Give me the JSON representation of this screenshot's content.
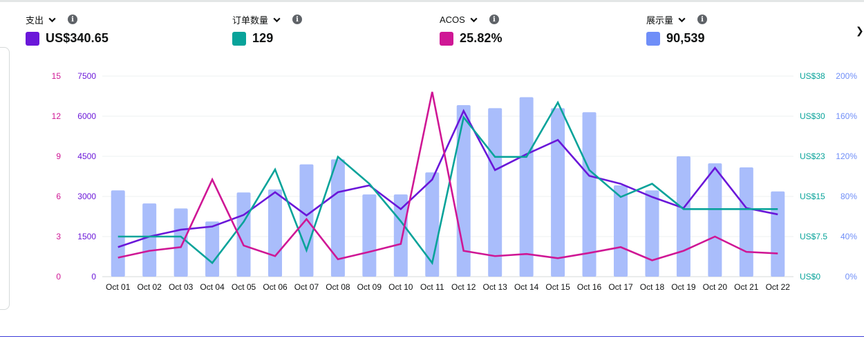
{
  "metrics": [
    {
      "name": "支出",
      "value": "US$340.65",
      "color": "#6a17d9"
    },
    {
      "name": "订单数量",
      "value": "129",
      "color": "#08a39a"
    },
    {
      "name": "ACOS",
      "value": "25.82%",
      "color": "#cf1795"
    },
    {
      "name": "展示量",
      "value": "90,539",
      "color": "#6f8ef8"
    }
  ],
  "icons": {
    "dropdown": "chevron-down-icon",
    "info": "info-icon"
  },
  "chart_data": {
    "type": "bar+line",
    "categories": [
      "Oct 01",
      "Oct 02",
      "Oct 03",
      "Oct 04",
      "Oct 05",
      "Oct 06",
      "Oct 07",
      "Oct 08",
      "Oct 09",
      "Oct 10",
      "Oct 11",
      "Oct 12",
      "Oct 13",
      "Oct 14",
      "Oct 15",
      "Oct 16",
      "Oct 17",
      "Oct 18",
      "Oct 19",
      "Oct 20",
      "Oct 21",
      "Oct 22"
    ],
    "axes": {
      "left_outer": {
        "ticks": [
          "0",
          "3",
          "6",
          "9",
          "12",
          "15"
        ],
        "min": 0,
        "max": 15,
        "color": "#cf1795"
      },
      "left_inner": {
        "ticks": [
          "0",
          "1500",
          "3000",
          "4500",
          "6000",
          "7500"
        ],
        "min": 0,
        "max": 7500,
        "color": "#6a17d9"
      },
      "right_inner": {
        "ticks": [
          "US$0",
          "US$7.5",
          "US$15",
          "US$23",
          "US$30",
          "US$38"
        ],
        "min": 0,
        "max": 38,
        "color": "#08a39a"
      },
      "right_outer": {
        "ticks": [
          "0%",
          "40%",
          "80%",
          "120%",
          "160%",
          "200%"
        ],
        "min": 0,
        "max": 200,
        "color": "#6f8ef8"
      }
    },
    "grid": true,
    "series": [
      {
        "name": "展示量",
        "type": "bar",
        "axis": "right_outer",
        "color": "#a9bdfb",
        "values": [
          86,
          73,
          68,
          55,
          84,
          87,
          112,
          117,
          82,
          82,
          104,
          171,
          168,
          179,
          168,
          164,
          91,
          86,
          120,
          113,
          109,
          85
        ]
      },
      {
        "name": "支出",
        "type": "line",
        "axis": "right_inner",
        "color": "#6a17d9",
        "values": [
          5.6,
          7.6,
          8.9,
          9.5,
          11.7,
          16.0,
          11.6,
          16.0,
          17.3,
          12.8,
          18.4,
          31.4,
          20.2,
          23.2,
          25.9,
          19.1,
          17.6,
          15.1,
          13.0,
          20.6,
          13.0,
          11.8
        ]
      },
      {
        "name": "订单数量",
        "type": "line",
        "axis": "right_inner",
        "color": "#08a39a",
        "values": [
          7.6,
          7.6,
          7.6,
          2.6,
          10.4,
          20.3,
          5.0,
          22.7,
          17.6,
          10.5,
          2.6,
          30.2,
          22.7,
          22.7,
          33.0,
          20.2,
          15.1,
          17.6,
          12.8,
          12.8,
          12.8,
          12.8
        ]
      },
      {
        "name": "ACOS",
        "type": "line",
        "axis": "right_inner",
        "color": "#cf1795",
        "values": [
          3.6,
          4.9,
          5.6,
          18.4,
          5.9,
          3.9,
          10.9,
          3.3,
          4.7,
          6.2,
          35.0,
          4.9,
          3.9,
          4.3,
          3.5,
          4.5,
          5.6,
          3.1,
          4.9,
          7.6,
          4.7,
          4.4
        ]
      }
    ]
  }
}
